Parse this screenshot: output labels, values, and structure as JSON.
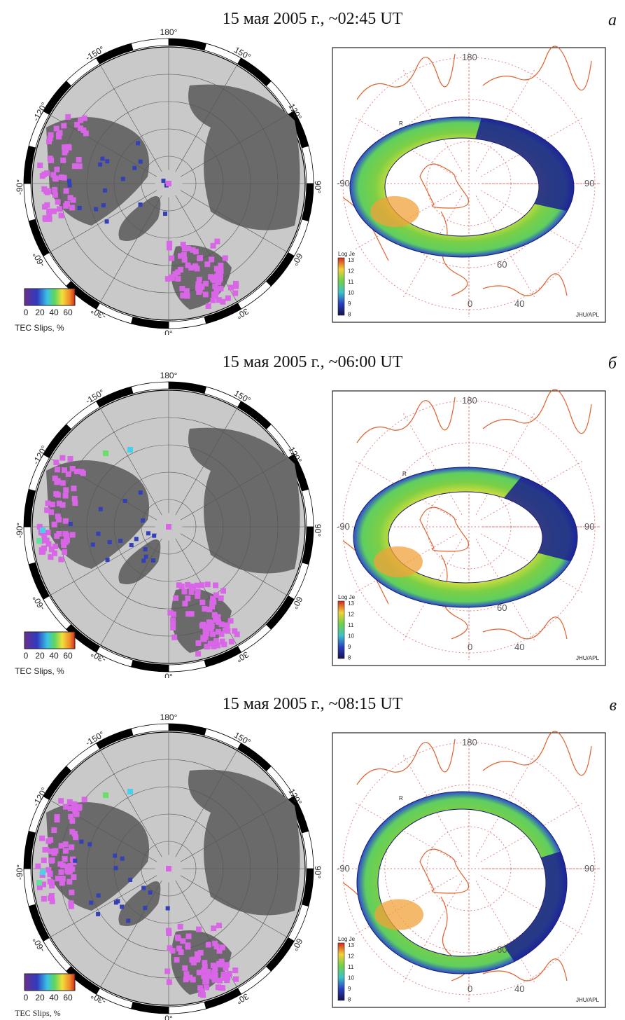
{
  "panels": [
    {
      "title": "15 мая 2005 г., ~02:45 UT",
      "letter": "а",
      "left_map": {
        "lon_ticks": [
          "180°",
          "150°",
          "120°",
          "90°",
          "60°",
          "30°",
          "0°",
          "-30°",
          "-60°",
          "-90°",
          "-120°",
          "-150°"
        ],
        "colorbar_ticks": [
          "0",
          "20",
          "40",
          "60"
        ],
        "colorbar_label": "TEC Slips, %"
      },
      "right_map": {
        "axis_labels": {
          "top": "180",
          "left": "-90",
          "right": "90",
          "bottom": "0",
          "lat60": "60",
          "lat40": "40"
        },
        "legend_title": "Log Je",
        "legend_ticks": [
          "13",
          "12",
          "11",
          "10",
          "9",
          "8"
        ],
        "credit": "JHU/APL",
        "marker": "R",
        "oval_note": "low-flux sector near top"
      }
    },
    {
      "title": "15 мая 2005 г., ~06:00 UT",
      "letter": "б",
      "left_map": {
        "lon_ticks": [
          "180°",
          "150°",
          "120°",
          "90°",
          "60°",
          "30°",
          "0°",
          "-30°",
          "-60°",
          "-90°",
          "-120°",
          "-150°"
        ],
        "colorbar_ticks": [
          "0",
          "20",
          "40",
          "60"
        ],
        "colorbar_label": "TEC Slips, %"
      },
      "right_map": {
        "axis_labels": {
          "top": "180",
          "left": "-90",
          "right": "90",
          "bottom": "0",
          "lat60": "60",
          "lat40": "40"
        },
        "legend_title": "Log Je",
        "legend_ticks": [
          "13",
          "12",
          "11",
          "10",
          "9",
          "8"
        ],
        "credit": "JHU/APL",
        "marker": "R",
        "oval_note": "low-flux sector upper right"
      }
    },
    {
      "title": "15 мая 2005 г., ~08:15 UT",
      "letter": "в",
      "left_map": {
        "lon_ticks": [
          "180°",
          "150°",
          "120°",
          "90°",
          "60°",
          "30°",
          "0°",
          "-30°",
          "-60°",
          "-90°",
          "-120°",
          "-150°"
        ],
        "colorbar_ticks": [
          "0",
          "20",
          "40",
          "60"
        ],
        "colorbar_label": "TEC Slips, %"
      },
      "right_map": {
        "axis_labels": {
          "top": "180",
          "left": "-90",
          "right": "90",
          "bottom": "0",
          "lat60": "60",
          "lat40": "40"
        },
        "legend_title": "Log Je",
        "legend_ticks": [
          "13",
          "12",
          "11",
          "10",
          "9",
          "8"
        ],
        "credit": "JHU/APL",
        "marker": "R",
        "oval_note": "low-flux sector at right"
      }
    }
  ],
  "colors": {
    "disk": "#c9c9c9",
    "land": "#6a6a6a",
    "slip_magenta": "#d966e6",
    "slip_blue": "#3340b8",
    "coast_orange": "#e0622e",
    "grid_dot": "#e07a7a"
  }
}
